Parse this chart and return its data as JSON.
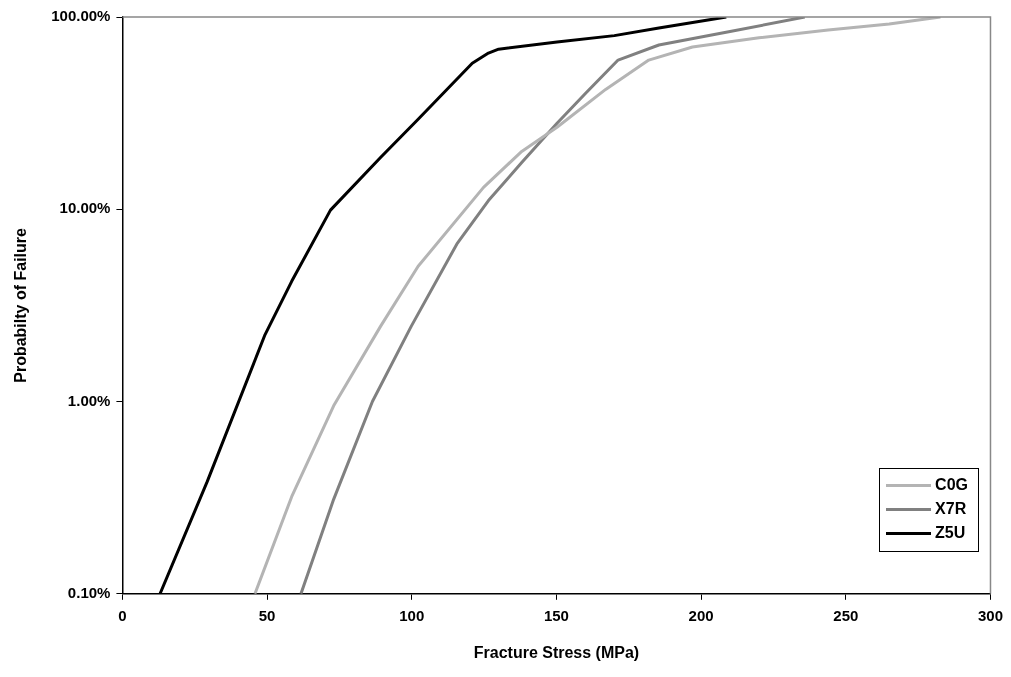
{
  "chart_data": {
    "type": "line",
    "xlabel": "Fracture Stress (MPa)",
    "ylabel": "Probabilty of Failure",
    "log": "y",
    "xlim": [
      0,
      300
    ],
    "xticks": [
      0,
      50,
      100,
      150,
      200,
      250,
      300
    ],
    "ylim": [
      0.1,
      100
    ],
    "yticks": [
      {
        "value": 0.1,
        "label": "0.10%"
      },
      {
        "value": 1,
        "label": "1.00%"
      },
      {
        "value": 10,
        "label": "10.00%"
      },
      {
        "value": 100,
        "label": "100.00%"
      }
    ],
    "grid": false,
    "legend": "bottom right",
    "marker": "none",
    "line_style": "solid",
    "series": [
      {
        "name": "C0G",
        "color": "#b4b4b4",
        "x": [
          45.8,
          58.5,
          73,
          89.2,
          102.2,
          124.8,
          138,
          150.2,
          167,
          181.9,
          197,
          220,
          243.9,
          265,
          282.7
        ],
        "values": [
          0.1,
          0.32,
          0.95,
          2.46,
          5.05,
          13,
          20,
          26.7,
          42,
          59.7,
          69.8,
          78,
          85.5,
          92,
          100
        ]
      },
      {
        "name": "X7R",
        "color": "#808080",
        "x": [
          61.7,
          73,
          86.4,
          99.8,
          115.6,
          126.5,
          138,
          150.2,
          160,
          171.3,
          185.4,
          210,
          235.8
        ],
        "values": [
          0.1,
          0.31,
          1,
          2.46,
          6.6,
          11.1,
          17.5,
          28,
          40,
          59.7,
          71.5,
          84,
          100
        ]
      },
      {
        "name": "Z5U",
        "color": "#000000",
        "x": [
          13,
          29.3,
          49.3,
          58.5,
          71.9,
          89.2,
          102.2,
          120.9,
          126.5,
          130,
          150.2,
          170,
          185.4,
          208.7
        ],
        "values": [
          0.1,
          0.383,
          2.23,
          4.22,
          9.9,
          18.6,
          29.4,
          57.5,
          64.9,
          68,
          74.1,
          80,
          87.7,
          100
        ]
      }
    ]
  }
}
